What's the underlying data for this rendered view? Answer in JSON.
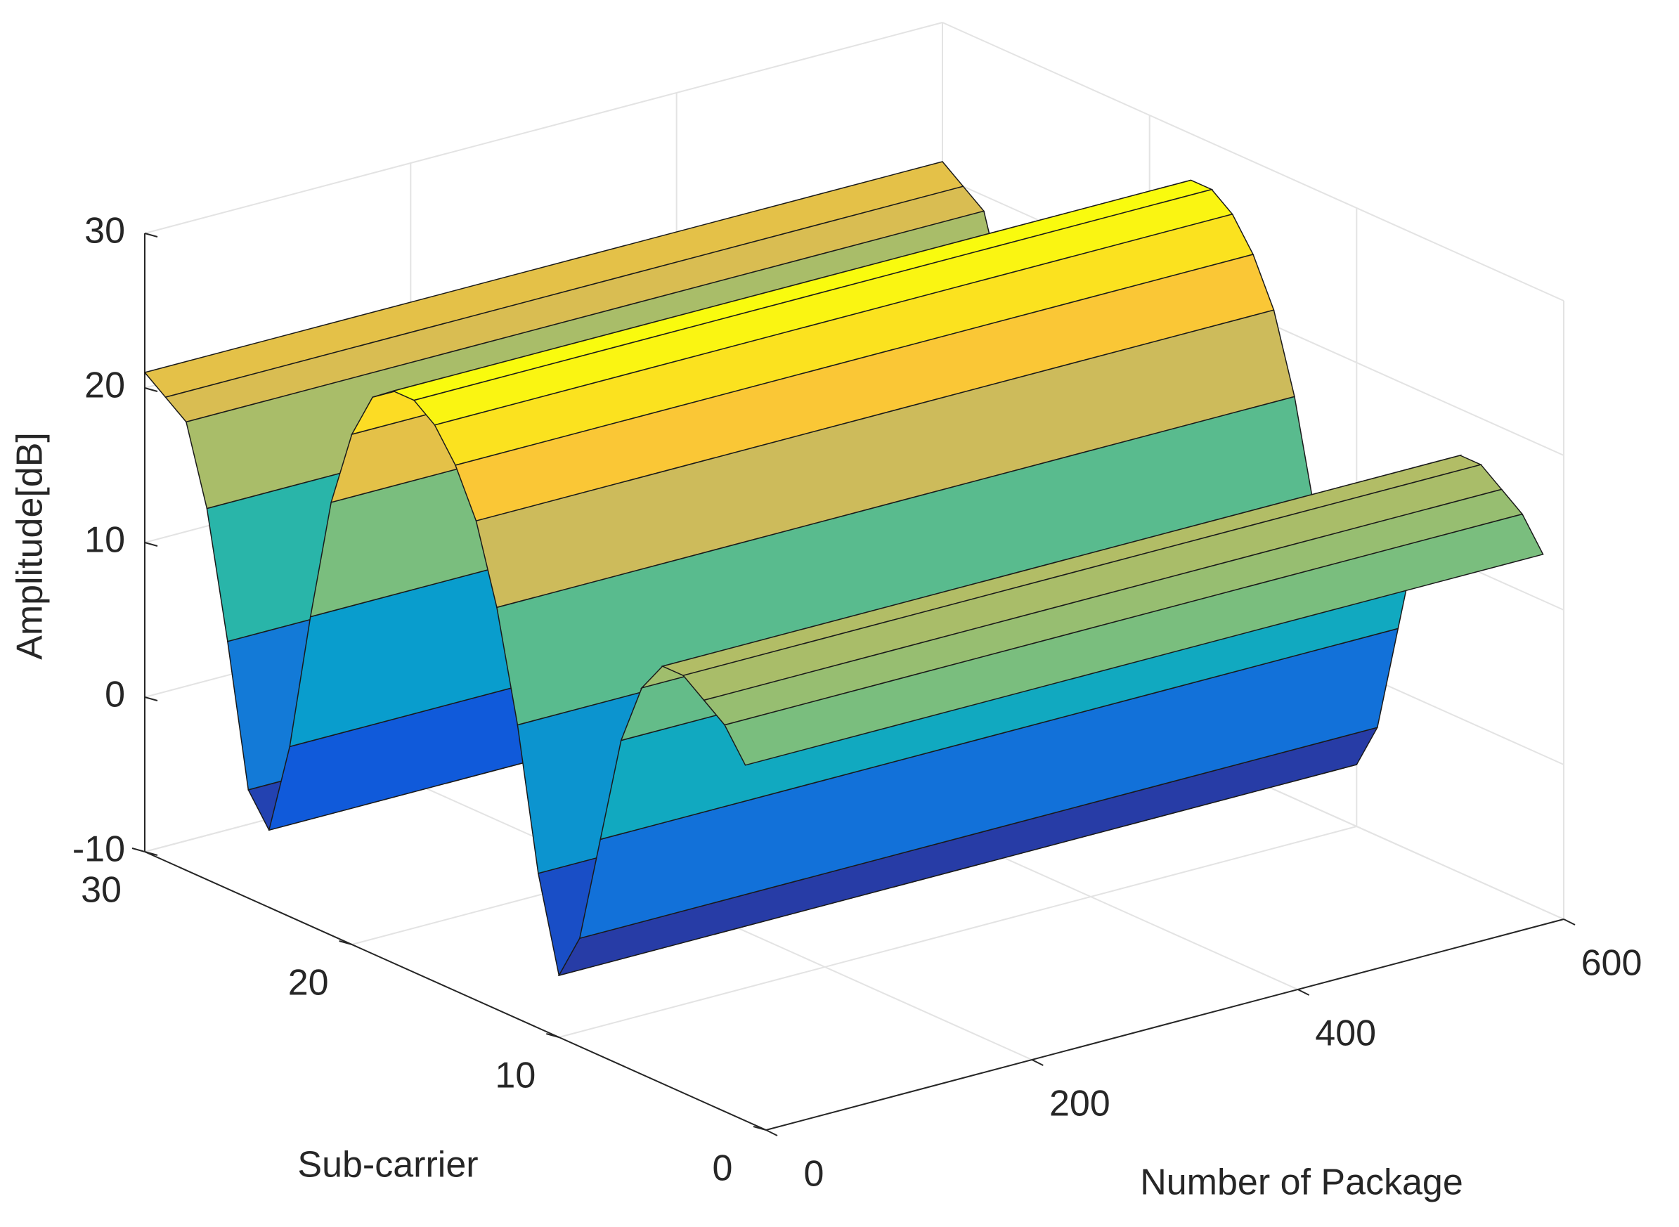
{
  "chart_data": {
    "type": "surface",
    "xlabel": "Number of Package",
    "ylabel": "Sub-carrier",
    "zlabel": "Amplitude[dB]",
    "xlim": [
      0,
      600
    ],
    "xticks": [
      0,
      200,
      400,
      600
    ],
    "ylim": [
      0,
      30
    ],
    "yticks": [
      0,
      10,
      20,
      30
    ],
    "zlim": [
      -10,
      30
    ],
    "zticks": [
      -10,
      0,
      10,
      20,
      30
    ],
    "grid": true,
    "colormap": "parula",
    "subcarriers": [
      1,
      2,
      3,
      4,
      5,
      6,
      7,
      8,
      9,
      10,
      11,
      12,
      13,
      14,
      15,
      16,
      17,
      18,
      19,
      20,
      21,
      22,
      23,
      24,
      25,
      26,
      27,
      28,
      29,
      30
    ],
    "amplitude": [
      13,
      15,
      16,
      17,
      17,
      15,
      11,
      4,
      -3,
      -6,
      0,
      9,
      16,
      21,
      24,
      26,
      27,
      27,
      26,
      23,
      18,
      10,
      1,
      -5,
      -3,
      6,
      14,
      19,
      20,
      21
    ]
  }
}
